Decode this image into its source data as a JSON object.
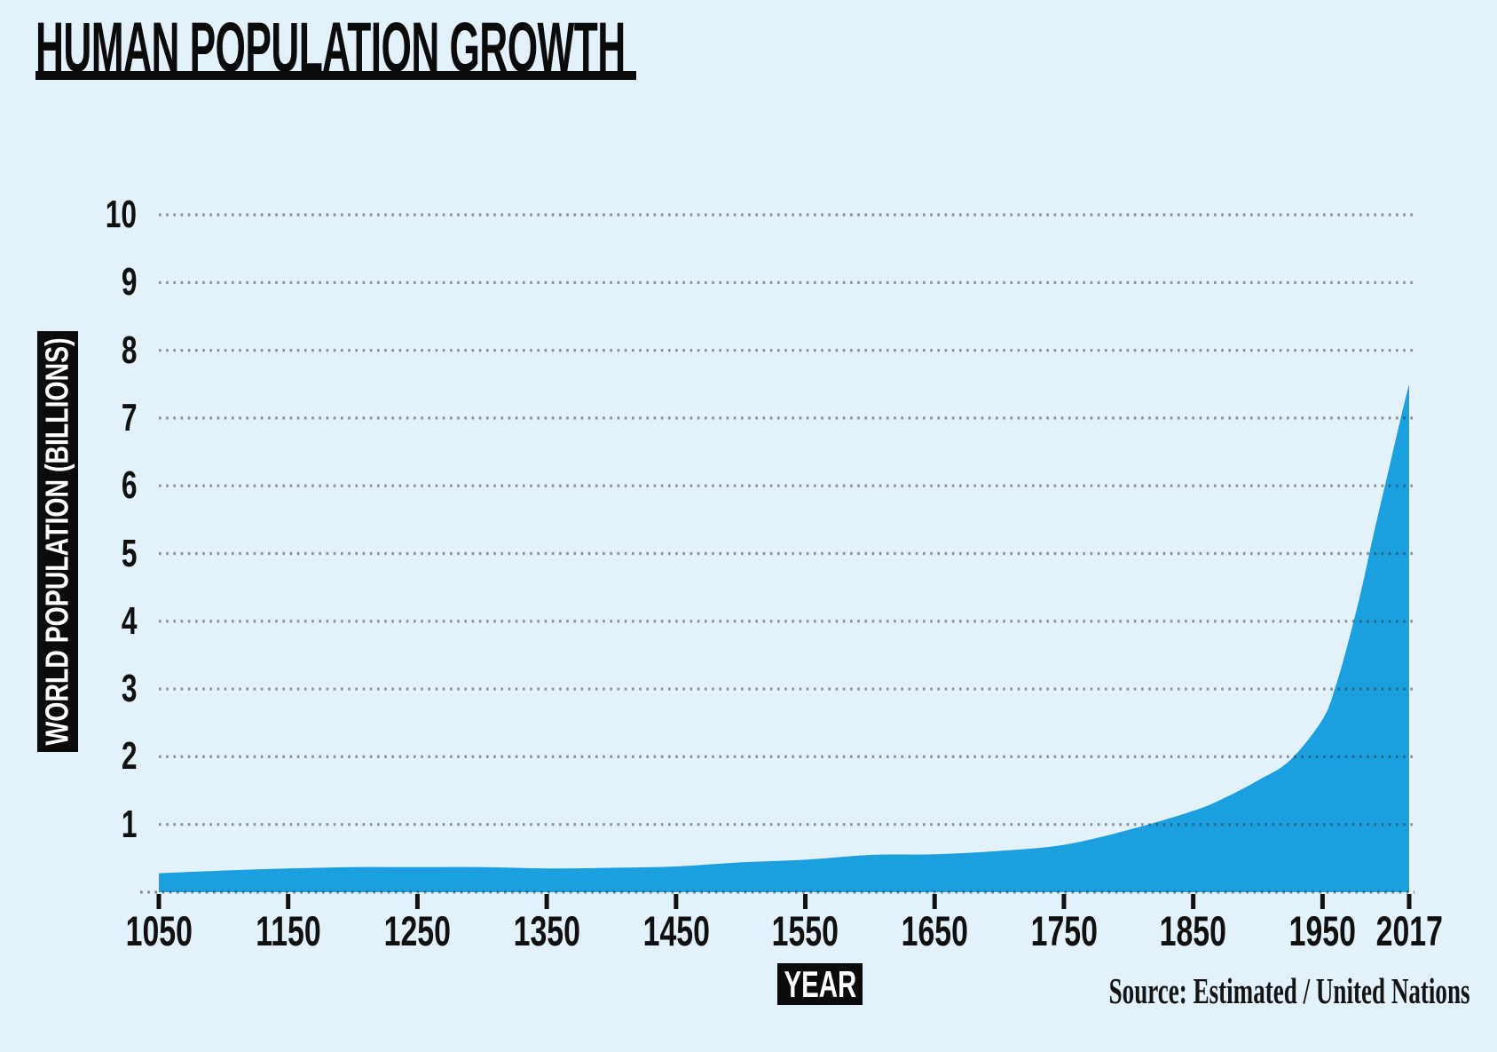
{
  "title": "HUMAN POPULATION GROWTH",
  "source_credit": "Source: Estimated / United Nations",
  "chart_data": {
    "type": "area",
    "title": "HUMAN POPULATION GROWTH",
    "xlabel": "YEAR",
    "ylabel": "WORLD POPULATION (BILLIONS)",
    "xlim": [
      1050,
      2017
    ],
    "ylim": [
      0,
      10
    ],
    "xticks": [
      1050,
      1150,
      1250,
      1350,
      1450,
      1550,
      1650,
      1750,
      1850,
      1950,
      2017
    ],
    "yticks": [
      1,
      2,
      3,
      4,
      5,
      6,
      7,
      8,
      9,
      10
    ],
    "grid": "horizontal dotted gridlines plus dotted baseline",
    "legend": "none",
    "series": [
      {
        "name": "World population (billions)",
        "x": [
          1050,
          1100,
          1150,
          1200,
          1250,
          1300,
          1350,
          1400,
          1450,
          1500,
          1550,
          1600,
          1650,
          1700,
          1750,
          1800,
          1850,
          1875,
          1900,
          1925,
          1950,
          1960,
          1970,
          1980,
          1990,
          2000,
          2010,
          2017
        ],
        "y": [
          0.28,
          0.32,
          0.35,
          0.37,
          0.37,
          0.37,
          0.35,
          0.36,
          0.38,
          0.44,
          0.48,
          0.55,
          0.56,
          0.61,
          0.7,
          0.92,
          1.2,
          1.4,
          1.65,
          1.95,
          2.55,
          3.03,
          3.7,
          4.46,
          5.33,
          6.14,
          6.96,
          7.5
        ]
      }
    ],
    "colors": {
      "area_fill": "#1b9fde",
      "background": "#e3f1fa",
      "grid_dots": "#2f2f2f",
      "axis_text": "#101010",
      "label_chip_bg": "#0b0b0b",
      "label_chip_text": "#ffffff"
    }
  }
}
